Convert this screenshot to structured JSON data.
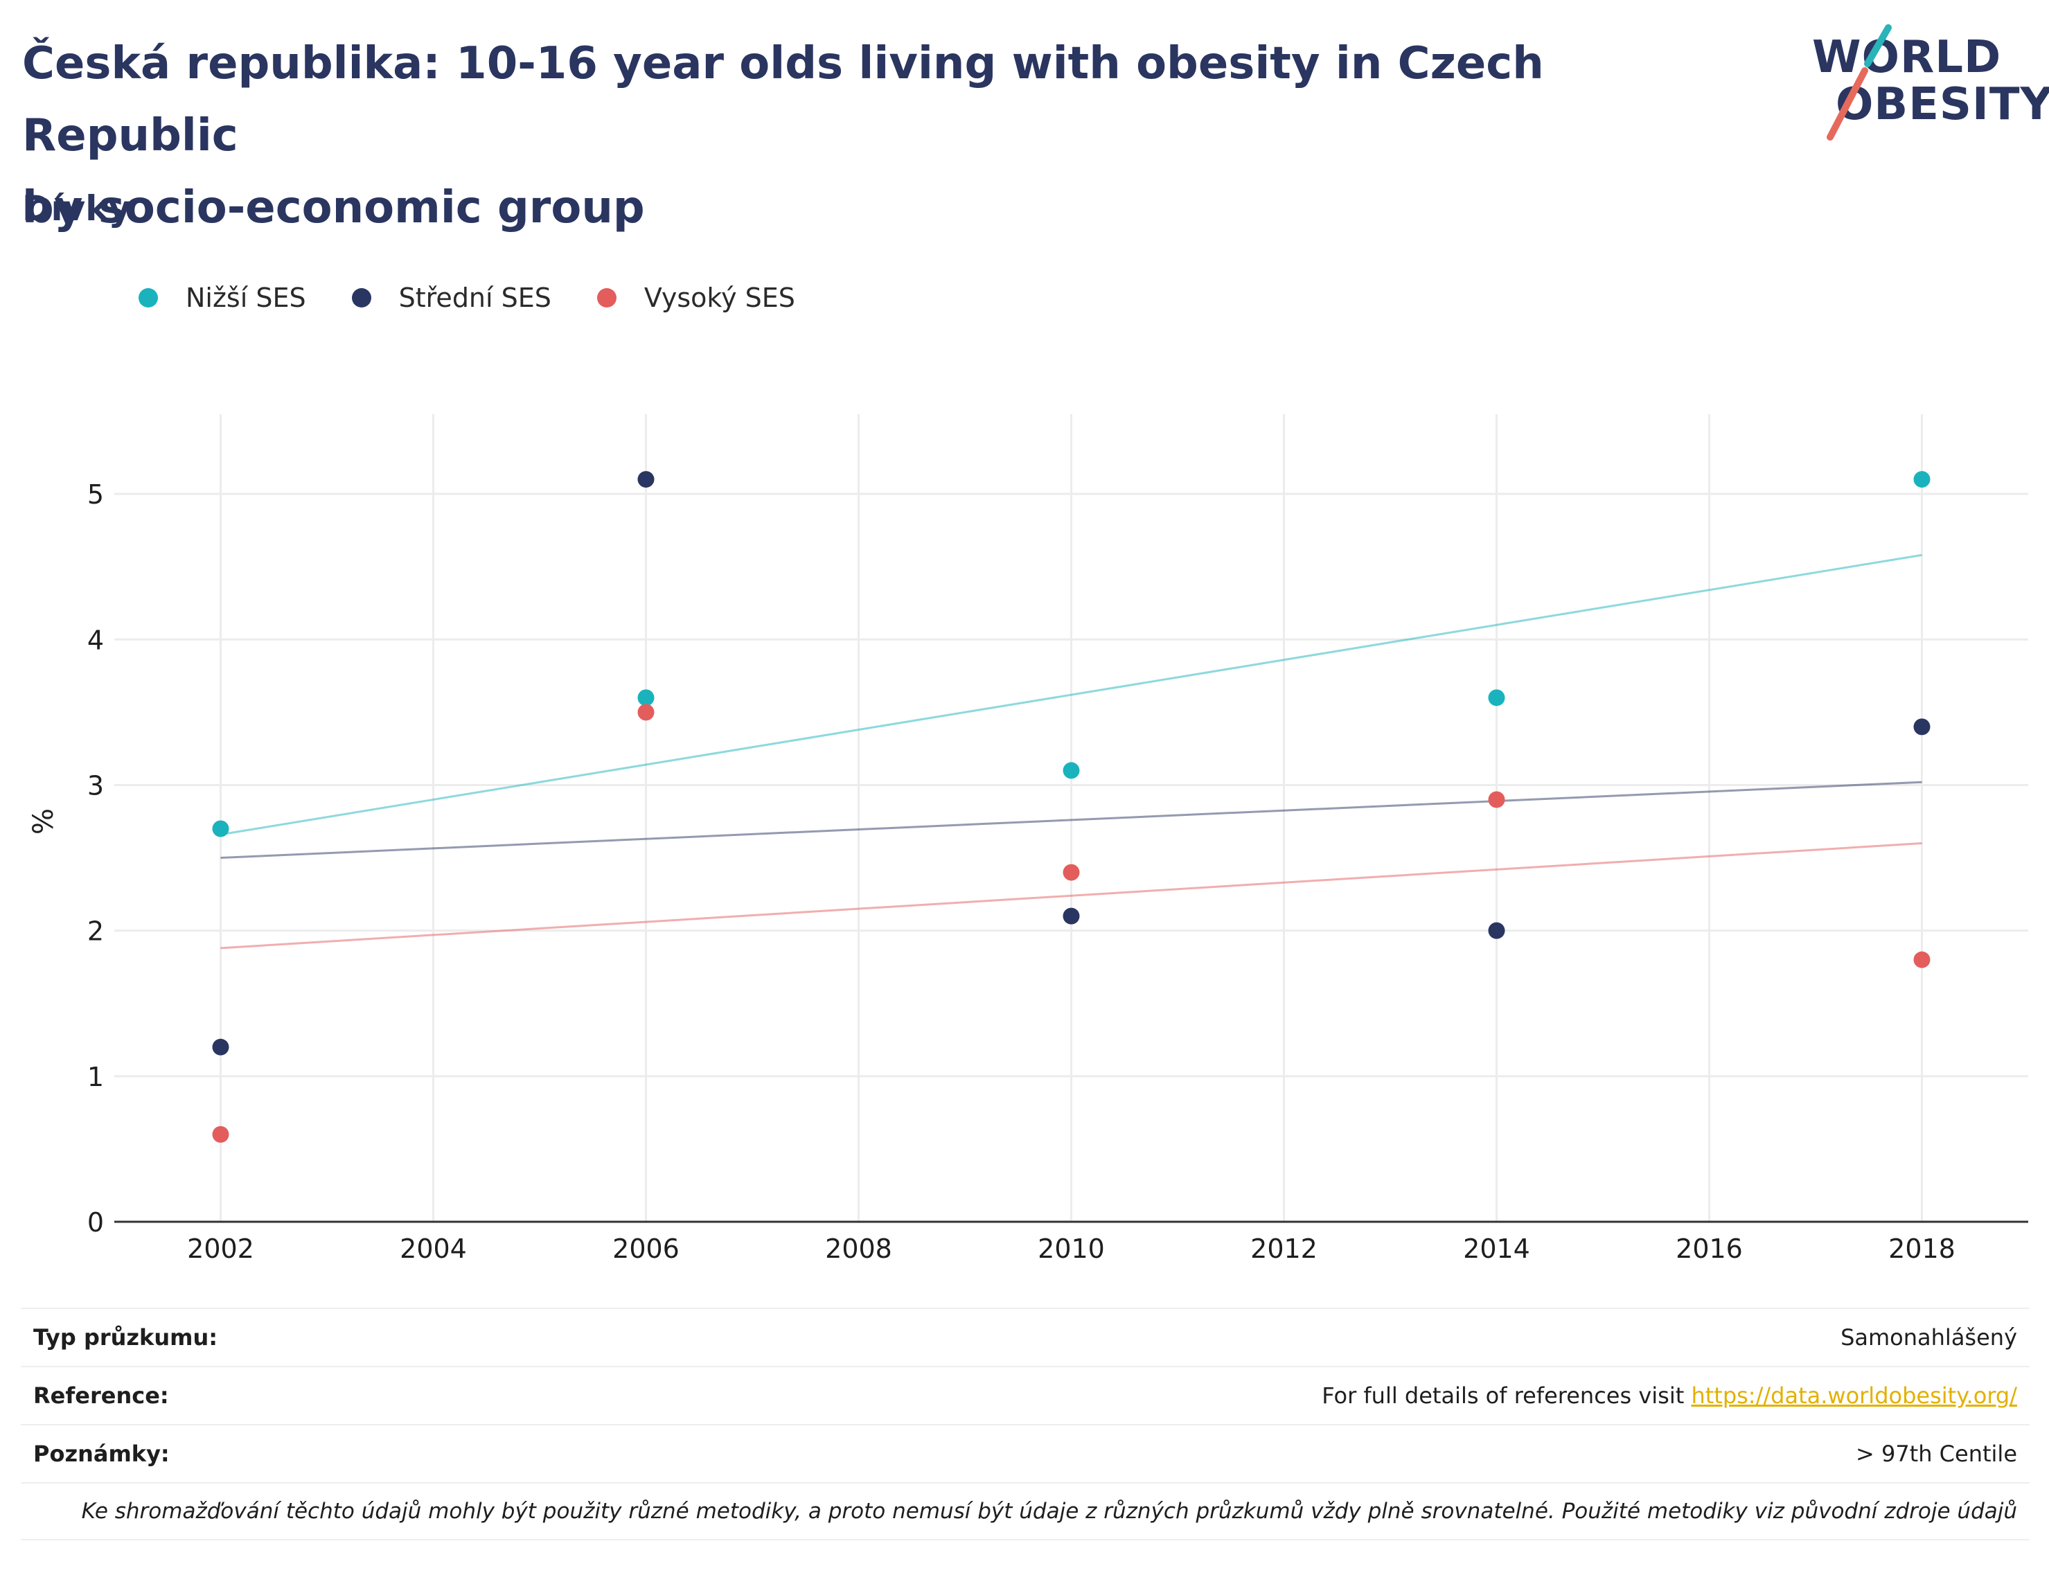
{
  "header": {
    "title_line1": "Česká republika: 10-16 year olds living with obesity in Czech Republic",
    "title_line2": "by socio-economic group",
    "subtitle": "Dívky"
  },
  "logo": {
    "line1": "WORLD",
    "line2": "OBESITY",
    "accent_teal": "#2ab3b8",
    "accent_red": "#e66a5c"
  },
  "colors": {
    "low": "#1ab3bd",
    "mid": "#293661",
    "high": "#e35d5d",
    "grid": "#ececec",
    "axis": "#333333"
  },
  "chart_data": {
    "type": "scatter",
    "xlabel": "",
    "ylabel": "%",
    "xlim": [
      2001,
      2019
    ],
    "ylim": [
      0,
      5.5
    ],
    "x_ticks": [
      2002,
      2004,
      2006,
      2008,
      2010,
      2012,
      2014,
      2016,
      2018
    ],
    "y_ticks": [
      0,
      1,
      2,
      3,
      4,
      5
    ],
    "grid": true,
    "legend_position": "top-left",
    "series": [
      {
        "name": "Nižší SES",
        "color": "#1ab3bd",
        "points": [
          [
            2002,
            2.7
          ],
          [
            2006,
            3.6
          ],
          [
            2010,
            3.1
          ],
          [
            2014,
            3.6
          ],
          [
            2018,
            5.1
          ]
        ],
        "trend": [
          [
            2002,
            2.66
          ],
          [
            2018,
            4.58
          ]
        ]
      },
      {
        "name": "Střední SES",
        "color": "#293661",
        "points": [
          [
            2002,
            1.2
          ],
          [
            2006,
            5.1
          ],
          [
            2010,
            2.1
          ],
          [
            2014,
            2.0
          ],
          [
            2018,
            3.4
          ]
        ],
        "trend": [
          [
            2002,
            2.5
          ],
          [
            2018,
            3.02
          ]
        ]
      },
      {
        "name": "Vysoký SES",
        "color": "#e35d5d",
        "points": [
          [
            2002,
            0.6
          ],
          [
            2006,
            3.5
          ],
          [
            2010,
            2.4
          ],
          [
            2014,
            2.9
          ],
          [
            2018,
            1.8
          ]
        ],
        "trend": [
          [
            2002,
            1.88
          ],
          [
            2018,
            2.6
          ]
        ]
      }
    ]
  },
  "info": {
    "survey_label": "Typ průzkumu:",
    "survey_value": "Samonahlášený",
    "ref_label": "Reference:",
    "ref_text": "For full details of references visit ",
    "ref_link": "https://data.worldobesity.org/",
    "notes_label": "Poznámky:",
    "notes_value": "> 97th Centile",
    "disclaimer": "Ke shromažďování těchto údajů mohly být použity různé metodiky, a proto nemusí být údaje z různých průzkumů vždy plně srovnatelné. Použité metodiky viz původní zdroje údajů"
  }
}
